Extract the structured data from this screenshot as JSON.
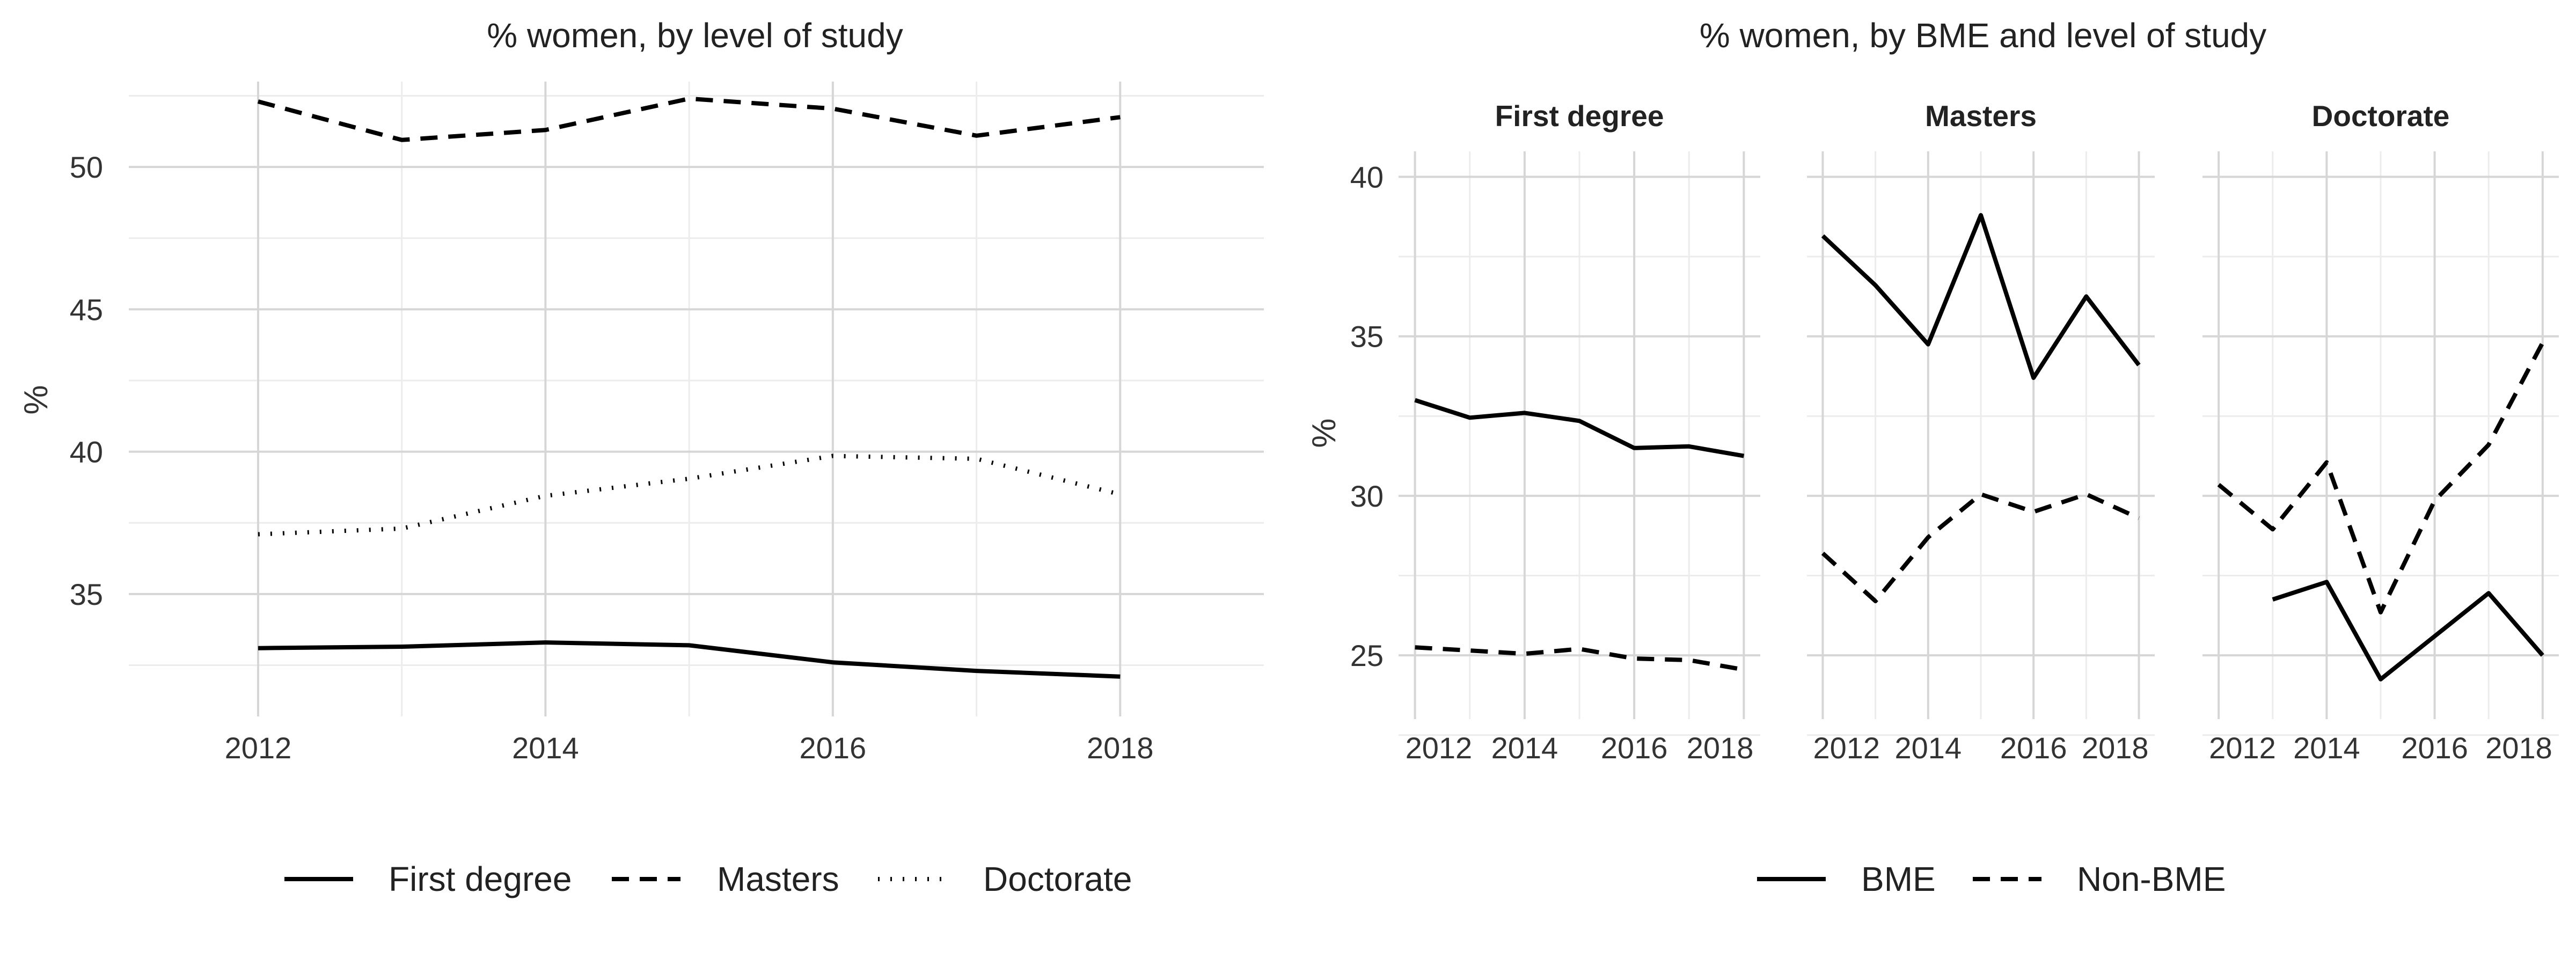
{
  "chart_data": [
    {
      "type": "line",
      "title": "% women, by level of study",
      "xlabel": "",
      "ylabel": "%",
      "x": [
        2012,
        2013,
        2014,
        2015,
        2016,
        2017,
        2018
      ],
      "xticks": [
        2012,
        2014,
        2016,
        2018
      ],
      "yticks": [
        35,
        40,
        45,
        50
      ],
      "xlim": [
        2011.1,
        2019.0
      ],
      "ylim": [
        30.7,
        53.0
      ],
      "grid": true,
      "legend_position": "bottom",
      "series": [
        {
          "name": "First degree",
          "line_style": "solid",
          "values": [
            33.1,
            33.15,
            33.3,
            33.2,
            32.6,
            32.3,
            32.1
          ]
        },
        {
          "name": "Masters",
          "line_style": "dashed",
          "values": [
            52.3,
            50.95,
            51.3,
            52.4,
            52.05,
            51.1,
            51.75
          ]
        },
        {
          "name": "Doctorate",
          "line_style": "dotted",
          "values": [
            37.1,
            37.3,
            38.45,
            39.05,
            39.85,
            39.75,
            38.5
          ]
        }
      ]
    },
    {
      "type": "line",
      "title": "% women, by BME and level of study",
      "xlabel": "",
      "ylabel": "%",
      "x": [
        2012,
        2013,
        2014,
        2015,
        2016,
        2017,
        2018
      ],
      "xticks": [
        2012,
        2014,
        2016,
        2018
      ],
      "yticks": [
        25,
        30,
        35,
        40
      ],
      "ylim": [
        23.0,
        40.8
      ],
      "grid": true,
      "legend_position": "bottom",
      "series_styles": [
        {
          "name": "BME",
          "line_style": "solid"
        },
        {
          "name": "Non-BME",
          "line_style": "dashed"
        }
      ],
      "facets": [
        {
          "label": "First degree",
          "series": [
            {
              "name": "BME",
              "values": [
                33.0,
                32.45,
                32.6,
                32.35,
                31.5,
                31.55,
                31.25
              ]
            },
            {
              "name": "Non-BME",
              "values": [
                25.25,
                25.15,
                25.05,
                25.2,
                24.9,
                24.85,
                24.55
              ]
            }
          ]
        },
        {
          "label": "Masters",
          "series": [
            {
              "name": "BME",
              "values": [
                38.15,
                36.6,
                34.75,
                38.8,
                33.7,
                36.25,
                34.1
              ]
            },
            {
              "name": "Non-BME",
              "values": [
                28.2,
                26.7,
                28.7,
                30.05,
                29.5,
                30.05,
                29.3
              ]
            }
          ]
        },
        {
          "label": "Doctorate",
          "series": [
            {
              "name": "BME",
              "values": [
                null,
                26.75,
                27.3,
                24.25,
                25.6,
                26.95,
                25.0
              ]
            },
            {
              "name": "Non-BME",
              "values": [
                30.35,
                28.95,
                31.05,
                26.35,
                29.85,
                31.6,
                34.8
              ]
            }
          ]
        }
      ]
    }
  ]
}
